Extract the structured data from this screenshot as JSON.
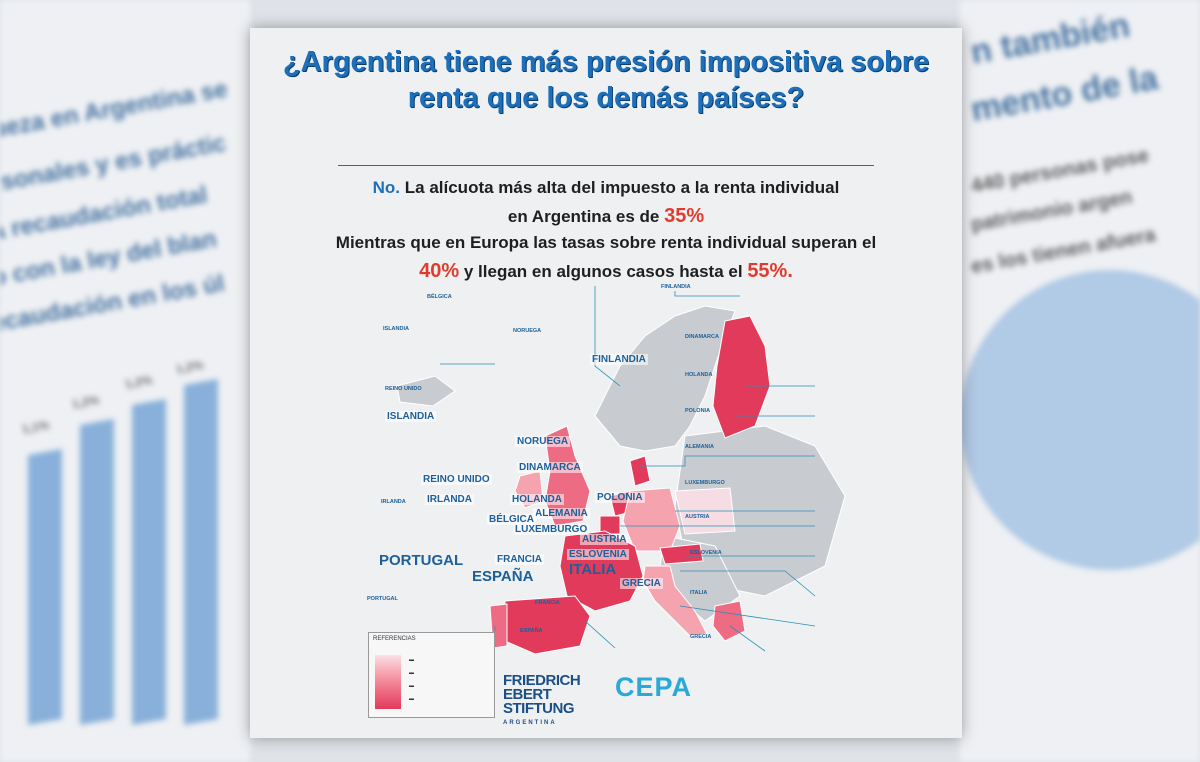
{
  "background": {
    "left_lines": [
      "ueza en Argentina se",
      "rsonales y es práctic",
      "a recaudación total",
      "o con la ley del blan",
      "ecaudación en los úl"
    ],
    "right_lines": [
      "n también",
      "mento de la",
      "440 personas pose",
      "patrimonio argen",
      "es los tienen afuera"
    ],
    "left_bar_labels": [
      "1,1%",
      "1,2%",
      "1,2%",
      "1,2%"
    ]
  },
  "infographic": {
    "title": "¿Argentina tiene más presión impositiva sobre renta que los demás países?",
    "answer_no": "No.",
    "answer_line1": "La alícuota más alta del impuesto a la renta individual",
    "answer_line2_pre": "en Argentina es de",
    "answer_pct_argentina": "35%",
    "answer_line3": "Mientras que en Europa las tasas sobre renta individual superan el",
    "answer_pct_min": "40%",
    "answer_line4_mid": "y llegan en algunos casos hasta el",
    "answer_pct_max": "55%."
  },
  "countries": {
    "islandia": "ISLANDIA",
    "finlandia": "FINLANDIA",
    "noruega": "NORUEGA",
    "dinamarca": "DINAMARCA",
    "reino_unido": "REINO UNIDO",
    "irlanda": "IRLANDA",
    "holanda": "HOLANDA",
    "polonia": "POLONIA",
    "alemania": "ALEMANIA",
    "belgica": "BÉLGICA",
    "luxemburgo": "LUXEMBURGO",
    "austria": "AUSTRIA",
    "eslovenia": "ESLOVENIA",
    "francia": "FRANCIA",
    "portugal": "PORTUGAL",
    "espana": "ESPAÑA",
    "italia": "ITALIA",
    "grecia": "GRECIA"
  },
  "info_boxes": {
    "belgica": "BÉLGICA",
    "islandia": "ISLANDIA",
    "noruega": "NORUEGA",
    "reino_unido": "REINO UNIDO",
    "irlanda": "IRLANDA",
    "finlandia": "FINLANDIA",
    "dinamarca": "DINAMARCA",
    "holanda": "HOLANDA",
    "polonia": "POLONIA",
    "alemania": "ALEMANIA",
    "luxemburgo": "LUXEMBURGO",
    "austria": "AUSTRIA",
    "eslovenia": "ESLOVENIA",
    "italia": "ITALIA",
    "portugal": "PORTUGAL",
    "francia": "FRANCIA",
    "espana": "ESPAÑA",
    "grecia": "GRECIA"
  },
  "legend": {
    "title": "REFERENCIAS"
  },
  "logos": {
    "fes_line1": "FRIEDRICH",
    "fes_line2": "EBERT",
    "fes_line3": "STIFTUNG",
    "fes_sub": "ARGENTINA",
    "cepa": "CEPA"
  },
  "colors": {
    "title_blue": "#1c6fb8",
    "highlight_red": "#e23b2e",
    "map_dark_red": "#e23a5a",
    "map_mid_red": "#ee6c83",
    "map_light_red": "#f6a3b0",
    "map_gray": "#c8ccd0"
  }
}
